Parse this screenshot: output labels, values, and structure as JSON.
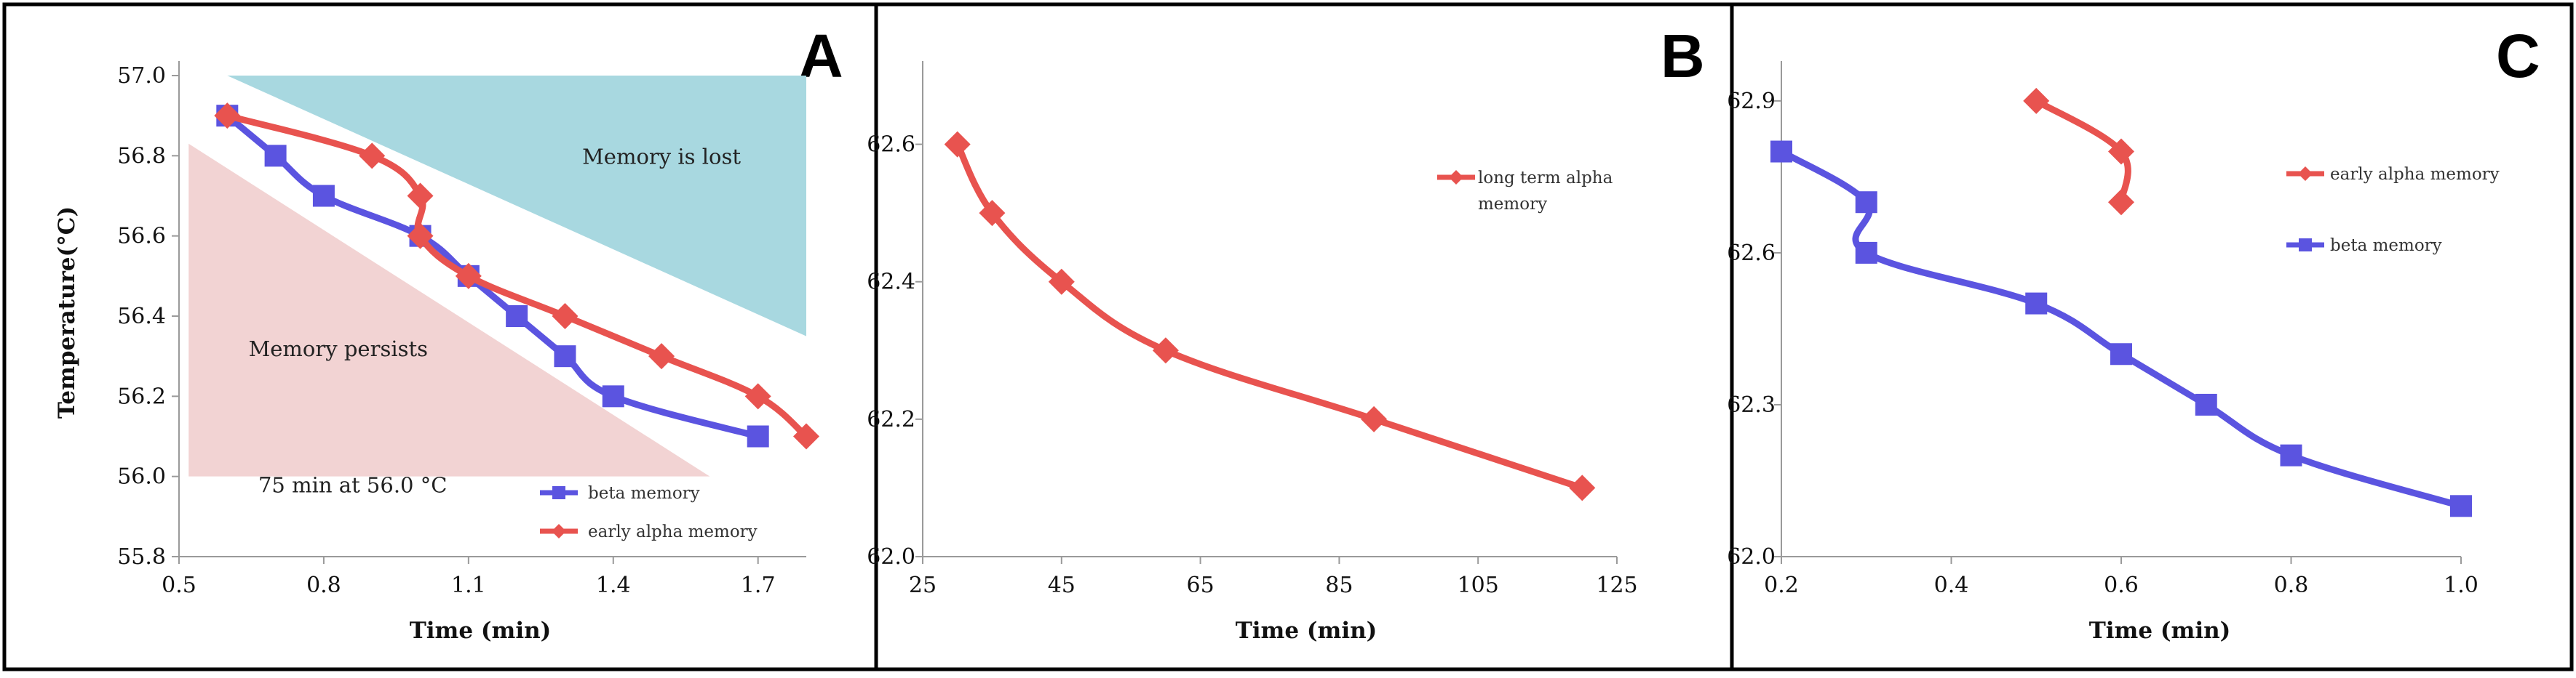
{
  "colors": {
    "red": "#e8534f",
    "blue": "#5b54e0",
    "teal": "#a8d8e0",
    "pink": "#f2d3d3"
  },
  "chart_data": [
    {
      "panel": "A",
      "type": "line",
      "xlabel": "Time (min)",
      "ylabel": "Temperature(°C)",
      "xlim": [
        0.5,
        1.8
      ],
      "ylim": [
        55.8,
        57.0
      ],
      "xticks": [
        0.5,
        0.8,
        1.1,
        1.4,
        1.7
      ],
      "xtick_labels": [
        "0.5",
        "0.8",
        "1.1",
        "1.4",
        "1.7"
      ],
      "yticks": [
        55.8,
        56.0,
        56.2,
        56.4,
        56.6,
        56.8,
        57.0
      ],
      "ytick_labels": [
        "55.8",
        "56.0",
        "56.2",
        "56.4",
        "56.6",
        "56.8",
        "57.0"
      ],
      "regions": [
        {
          "name": "memory-lost-region",
          "color_key": "teal",
          "polygon": [
            [
              0.6,
              57.0
            ],
            [
              1.8,
              57.0
            ],
            [
              1.8,
              56.35
            ]
          ]
        },
        {
          "name": "memory-persists-region",
          "color_key": "pink",
          "polygon": [
            [
              0.52,
              56.83
            ],
            [
              0.52,
              56.0
            ],
            [
              1.6,
              56.0
            ]
          ]
        }
      ],
      "annotations": [
        {
          "name": "memory-lost-label",
          "text": "Memory is lost",
          "x": 1.5,
          "y": 56.78
        },
        {
          "name": "memory-persists-label",
          "text": "Memory persists",
          "x": 0.83,
          "y": 56.3
        },
        {
          "name": "condition-label",
          "text": "75 min at 56.0 °C",
          "x": 0.86,
          "y": 55.96
        }
      ],
      "series": [
        {
          "name": "beta memory",
          "color_key": "blue",
          "marker": "square",
          "x": [
            0.6,
            0.7,
            0.8,
            1.0,
            1.1,
            1.2,
            1.3,
            1.4,
            1.7
          ],
          "y": [
            56.9,
            56.8,
            56.7,
            56.6,
            56.5,
            56.4,
            56.3,
            56.2,
            56.1
          ]
        },
        {
          "name": "early alpha memory",
          "color_key": "red",
          "marker": "diamond",
          "x": [
            0.6,
            0.9,
            1.0,
            1.0,
            1.1,
            1.3,
            1.5,
            1.7,
            1.8
          ],
          "y": [
            56.9,
            56.8,
            56.7,
            56.6,
            56.5,
            56.4,
            56.3,
            56.2,
            56.1
          ]
        }
      ],
      "legend": {
        "position": "bottom-right",
        "entries": [
          "beta memory",
          "early alpha memory"
        ]
      }
    },
    {
      "panel": "B",
      "type": "line",
      "xlabel": "Time (min)",
      "ylabel": "",
      "xlim": [
        25,
        125
      ],
      "ylim": [
        62.0,
        62.7
      ],
      "xticks": [
        25,
        45,
        65,
        85,
        105,
        125
      ],
      "xtick_labels": [
        "25",
        "45",
        "65",
        "85",
        "105",
        "125"
      ],
      "yticks": [
        62.0,
        62.2,
        62.4,
        62.6
      ],
      "ytick_labels": [
        "62.0",
        "62.2",
        "62.4",
        "62.6"
      ],
      "series": [
        {
          "name": "long term alpha memory",
          "color_key": "red",
          "marker": "diamond",
          "x": [
            30,
            35,
            45,
            60,
            90,
            120
          ],
          "y": [
            62.6,
            62.5,
            62.4,
            62.3,
            62.2,
            62.1
          ]
        }
      ],
      "legend": {
        "position": "top-right",
        "entries": [
          "long term alpha memory"
        ]
      }
    },
    {
      "panel": "C",
      "type": "line",
      "xlabel": "Time (min)",
      "ylabel": "",
      "xlim": [
        0.2,
        1.0
      ],
      "ylim": [
        62.0,
        62.95
      ],
      "xticks": [
        0.2,
        0.4,
        0.6,
        0.8,
        1.0
      ],
      "xtick_labels": [
        "0.2",
        "0.4",
        "0.6",
        "0.8",
        "1.0"
      ],
      "yticks": [
        62.0,
        62.3,
        62.6,
        62.9
      ],
      "ytick_labels": [
        "62.0",
        "62.3",
        "62.6",
        "62.9"
      ],
      "series": [
        {
          "name": "early alpha memory",
          "color_key": "red",
          "marker": "diamond",
          "x": [
            0.5,
            0.6,
            0.6
          ],
          "y": [
            62.9,
            62.8,
            62.7
          ]
        },
        {
          "name": "beta memory",
          "color_key": "blue",
          "marker": "square",
          "x": [
            0.2,
            0.3,
            0.3,
            0.5,
            0.6,
            0.7,
            0.8,
            1.0
          ],
          "y": [
            62.8,
            62.7,
            62.6,
            62.5,
            62.4,
            62.3,
            62.2,
            62.1
          ]
        }
      ],
      "legend": {
        "position": "top-right",
        "entries": [
          "early alpha memory",
          "beta memory"
        ]
      }
    }
  ]
}
